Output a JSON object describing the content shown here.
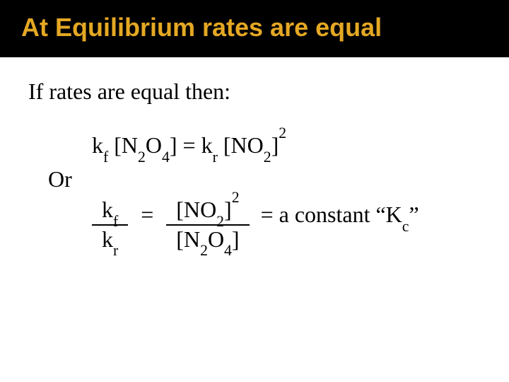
{
  "colors": {
    "title_bg": "#000000",
    "title_fg": "#e5a823",
    "body_fg": "#000000",
    "page_bg": "#ffffff"
  },
  "typography": {
    "title_family": "Arial",
    "title_weight": "bold",
    "title_size_pt": 36,
    "body_family": "Times New Roman",
    "body_size_pt": 32
  },
  "title": "At Equilibrium rates are equal",
  "intro": "If rates are equal then:",
  "eq1": {
    "lhs_k": "k",
    "lhs_k_sub": "f",
    "lhs_species_open": " [N",
    "lhs_species_sub1": "2",
    "lhs_species_mid": "O",
    "lhs_species_sub2": "4",
    "lhs_species_close": "]",
    "eq": " =  ",
    "rhs_k": "k",
    "rhs_k_sub": "r",
    "rhs_species_open": " [NO",
    "rhs_species_sub": "2",
    "rhs_species_close": "]",
    "rhs_power": "2"
  },
  "or_label": "Or",
  "eq2": {
    "left_frac": {
      "num_k": "k",
      "num_k_sub": "f",
      "den_k": "k",
      "den_k_sub": "r"
    },
    "mid1": "=",
    "right_frac": {
      "num_open": "[NO",
      "num_sub": "2",
      "num_close": "]",
      "num_power": "2",
      "den_open": "[N",
      "den_sub1": "2",
      "den_mid": "O",
      "den_sub2": "4",
      "den_close": "]"
    },
    "mid2": "=",
    "tail_pre": "  a constant “K",
    "tail_sub": "c",
    "tail_post": "”"
  }
}
